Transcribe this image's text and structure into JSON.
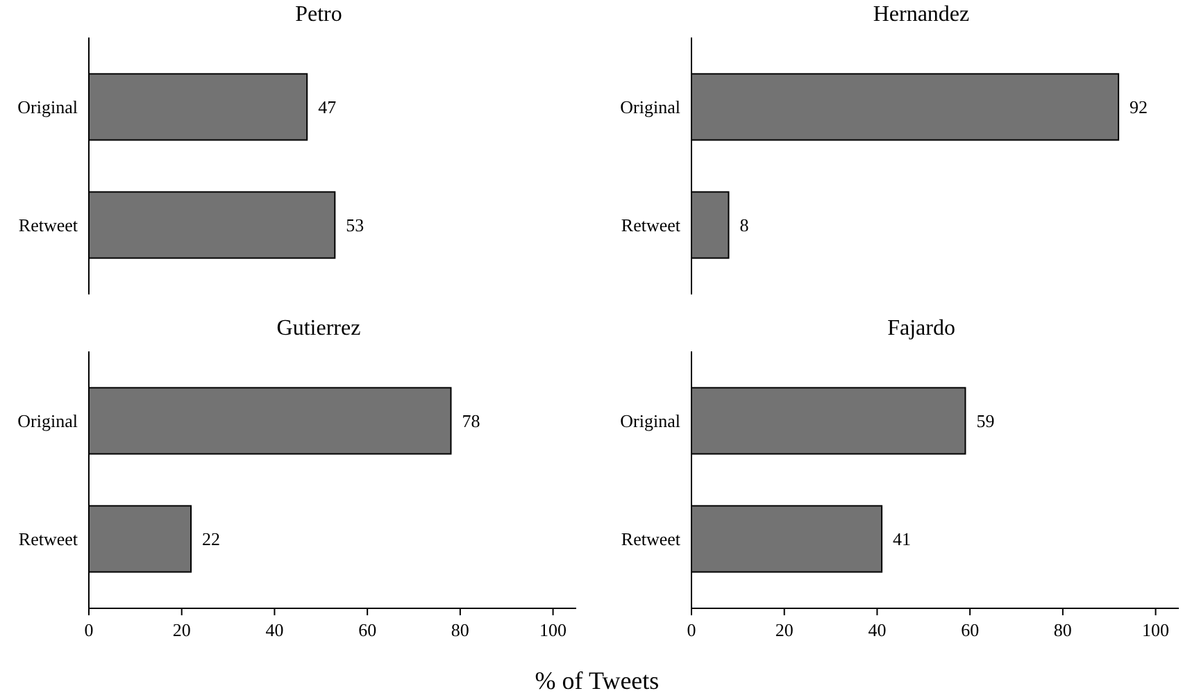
{
  "chart_data": [
    {
      "type": "bar",
      "orientation": "horizontal",
      "title": "Petro",
      "categories": [
        "Original",
        "Retweet"
      ],
      "values": [
        47,
        53
      ],
      "color": "#737373",
      "data_labels": true,
      "tick_labels": "y"
    },
    {
      "type": "bar",
      "orientation": "horizontal",
      "title": "Hernandez",
      "categories": [
        "Original",
        "Retweet"
      ],
      "values": [
        92,
        8
      ],
      "color": "#737373",
      "data_labels": true,
      "tick_labels": "y"
    },
    {
      "type": "bar",
      "orientation": "horizontal",
      "title": "Gutierrez",
      "categories": [
        "Original",
        "Retweet"
      ],
      "values": [
        78,
        22
      ],
      "color": "#737373",
      "xlim": [
        0,
        105
      ],
      "xticks": [
        0,
        20,
        40,
        60,
        80,
        100
      ],
      "data_labels": true,
      "xlabel": "% of Tweets"
    },
    {
      "type": "bar",
      "orientation": "horizontal",
      "title": "Fajardo",
      "categories": [
        "Original",
        "Retweet"
      ],
      "values": [
        59,
        41
      ],
      "color": "#737373",
      "xlim": [
        0,
        105
      ],
      "xticks": [
        0,
        20,
        40,
        60,
        80,
        100
      ],
      "data_labels": true
    }
  ]
}
